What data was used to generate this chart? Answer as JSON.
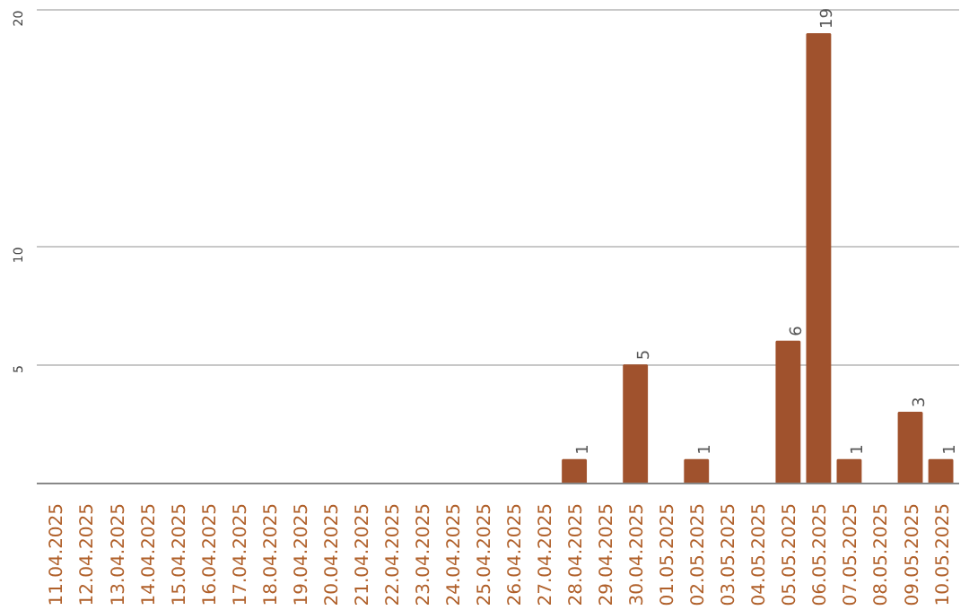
{
  "chart_data": {
    "type": "bar",
    "categories": [
      "11.04.2025",
      "12.04.2025",
      "13.04.2025",
      "14.04.2025",
      "15.04.2025",
      "16.04.2025",
      "17.04.2025",
      "18.04.2025",
      "19.04.2025",
      "20.04.2025",
      "21.04.2025",
      "22.04.2025",
      "23.04.2025",
      "24.04.2025",
      "25.04.2025",
      "26.04.2025",
      "27.04.2025",
      "28.04.2025",
      "29.04.2025",
      "30.04.2025",
      "01.05.2025",
      "02.05.2025",
      "03.05.2025",
      "04.05.2025",
      "05.05.2025",
      "06.05.2025",
      "07.05.2025",
      "08.05.2025",
      "09.05.2025",
      "10.05.2025"
    ],
    "values": [
      0,
      0,
      0,
      0,
      0,
      0,
      0,
      0,
      0,
      0,
      0,
      0,
      0,
      0,
      0,
      0,
      0,
      1,
      0,
      5,
      0,
      1,
      0,
      0,
      6,
      19,
      1,
      0,
      3,
      1
    ],
    "value_labels": [
      null,
      null,
      null,
      null,
      null,
      null,
      null,
      null,
      null,
      null,
      null,
      null,
      null,
      null,
      null,
      null,
      null,
      "1",
      null,
      "5",
      null,
      "1",
      null,
      null,
      "6",
      "19",
      "1",
      null,
      "3",
      "1"
    ],
    "color": "#a0522d",
    "ylim": [
      0,
      20
    ],
    "yticks": [
      5,
      10,
      20
    ],
    "grid": "y"
  }
}
